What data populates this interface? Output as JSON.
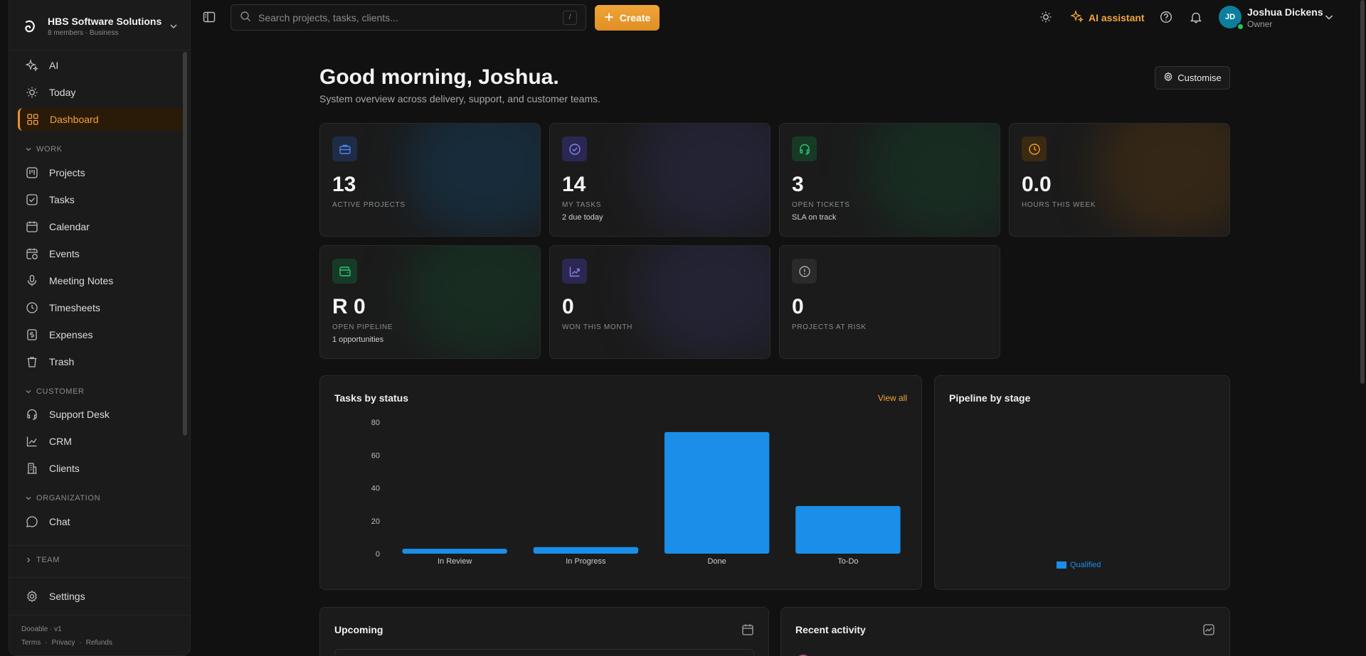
{
  "workspace": {
    "name": "HBS Software Solutions",
    "meta": "8 members · Business"
  },
  "sidebar": {
    "top_items": [
      {
        "label": "AI",
        "icon": "sparkles-icon"
      },
      {
        "label": "Today",
        "icon": "sun-icon"
      },
      {
        "label": "Dashboard",
        "icon": "grid-icon",
        "active": true
      }
    ],
    "sections": {
      "work": "WORK",
      "customer": "CUSTOMER",
      "organization": "ORGANIZATION",
      "team": "TEAM"
    },
    "work_items": [
      {
        "label": "Projects",
        "icon": "kanban-icon"
      },
      {
        "label": "Tasks",
        "icon": "checkbox-icon"
      },
      {
        "label": "Calendar",
        "icon": "calendar-icon"
      },
      {
        "label": "Events",
        "icon": "calendar-clock-icon"
      },
      {
        "label": "Meeting Notes",
        "icon": "microphone-icon"
      },
      {
        "label": "Timesheets",
        "icon": "clock-icon"
      },
      {
        "label": "Expenses",
        "icon": "receipt-icon"
      },
      {
        "label": "Trash",
        "icon": "trash-icon"
      }
    ],
    "customer_items": [
      {
        "label": "Support Desk",
        "icon": "headset-icon"
      },
      {
        "label": "CRM",
        "icon": "chart-line-icon"
      },
      {
        "label": "Clients",
        "icon": "building-icon"
      }
    ],
    "organization_items": [
      {
        "label": "Chat",
        "icon": "chat-icon"
      }
    ],
    "settings": {
      "label": "Settings",
      "icon": "gear-icon"
    },
    "footer": {
      "version": "Dooable · v1",
      "links": [
        "Terms",
        "·",
        "Privacy",
        "·",
        "Refunds"
      ]
    }
  },
  "topbar": {
    "search_placeholder": "Search projects, tasks, clients...",
    "search_shortcut": "/",
    "create_label": "Create",
    "ai_label": "AI assistant",
    "user": {
      "initials": "JD",
      "name": "Joshua Dickens",
      "role": "Owner"
    }
  },
  "header": {
    "greeting": "Good morning, Joshua.",
    "subtitle": "System overview across delivery, support, and customer teams.",
    "customise_label": "Customise"
  },
  "stats": [
    {
      "value": "13",
      "label": "ACTIVE PROJECTS",
      "sub": "",
      "icon": "briefcase-icon",
      "color": "#3b6fd4"
    },
    {
      "value": "14",
      "label": "MY TASKS",
      "sub": "2 due today",
      "icon": "check-circle-icon",
      "color": "#7b6fe0"
    },
    {
      "value": "3",
      "label": "OPEN TICKETS",
      "sub": "SLA on track",
      "icon": "headset-icon",
      "color": "#26b36a"
    },
    {
      "value": "0.0",
      "label": "HOURS THIS WEEK",
      "sub": "",
      "icon": "clock-icon",
      "color": "#e0982a"
    },
    {
      "value": "R 0",
      "label": "OPEN PIPELINE",
      "sub": "1 opportunities",
      "icon": "wallet-icon",
      "color": "#26b36a"
    },
    {
      "value": "0",
      "label": "WON THIS MONTH",
      "sub": "",
      "icon": "trend-up-icon",
      "color": "#7b6fe0"
    },
    {
      "value": "0",
      "label": "PROJECTS AT RISK",
      "sub": "",
      "icon": "alert-circle-icon",
      "color": "#9a9a9a"
    }
  ],
  "tasks_panel": {
    "title": "Tasks by status",
    "view_all": "View all"
  },
  "pipeline_panel": {
    "title": "Pipeline by stage",
    "legend": "Qualified"
  },
  "upcoming_panel": {
    "title": "Upcoming"
  },
  "activity_panel": {
    "title": "Recent activity"
  },
  "chart_data": {
    "type": "bar",
    "categories": [
      "In Review",
      "In Progress",
      "Done",
      "To-Do"
    ],
    "values": [
      3,
      4,
      74,
      29
    ],
    "ylim": [
      0,
      80
    ],
    "yticks": [
      0,
      20,
      40,
      60,
      80
    ],
    "color": "#1a8ee8",
    "grid": false,
    "title": "",
    "xlabel": "",
    "ylabel": ""
  }
}
